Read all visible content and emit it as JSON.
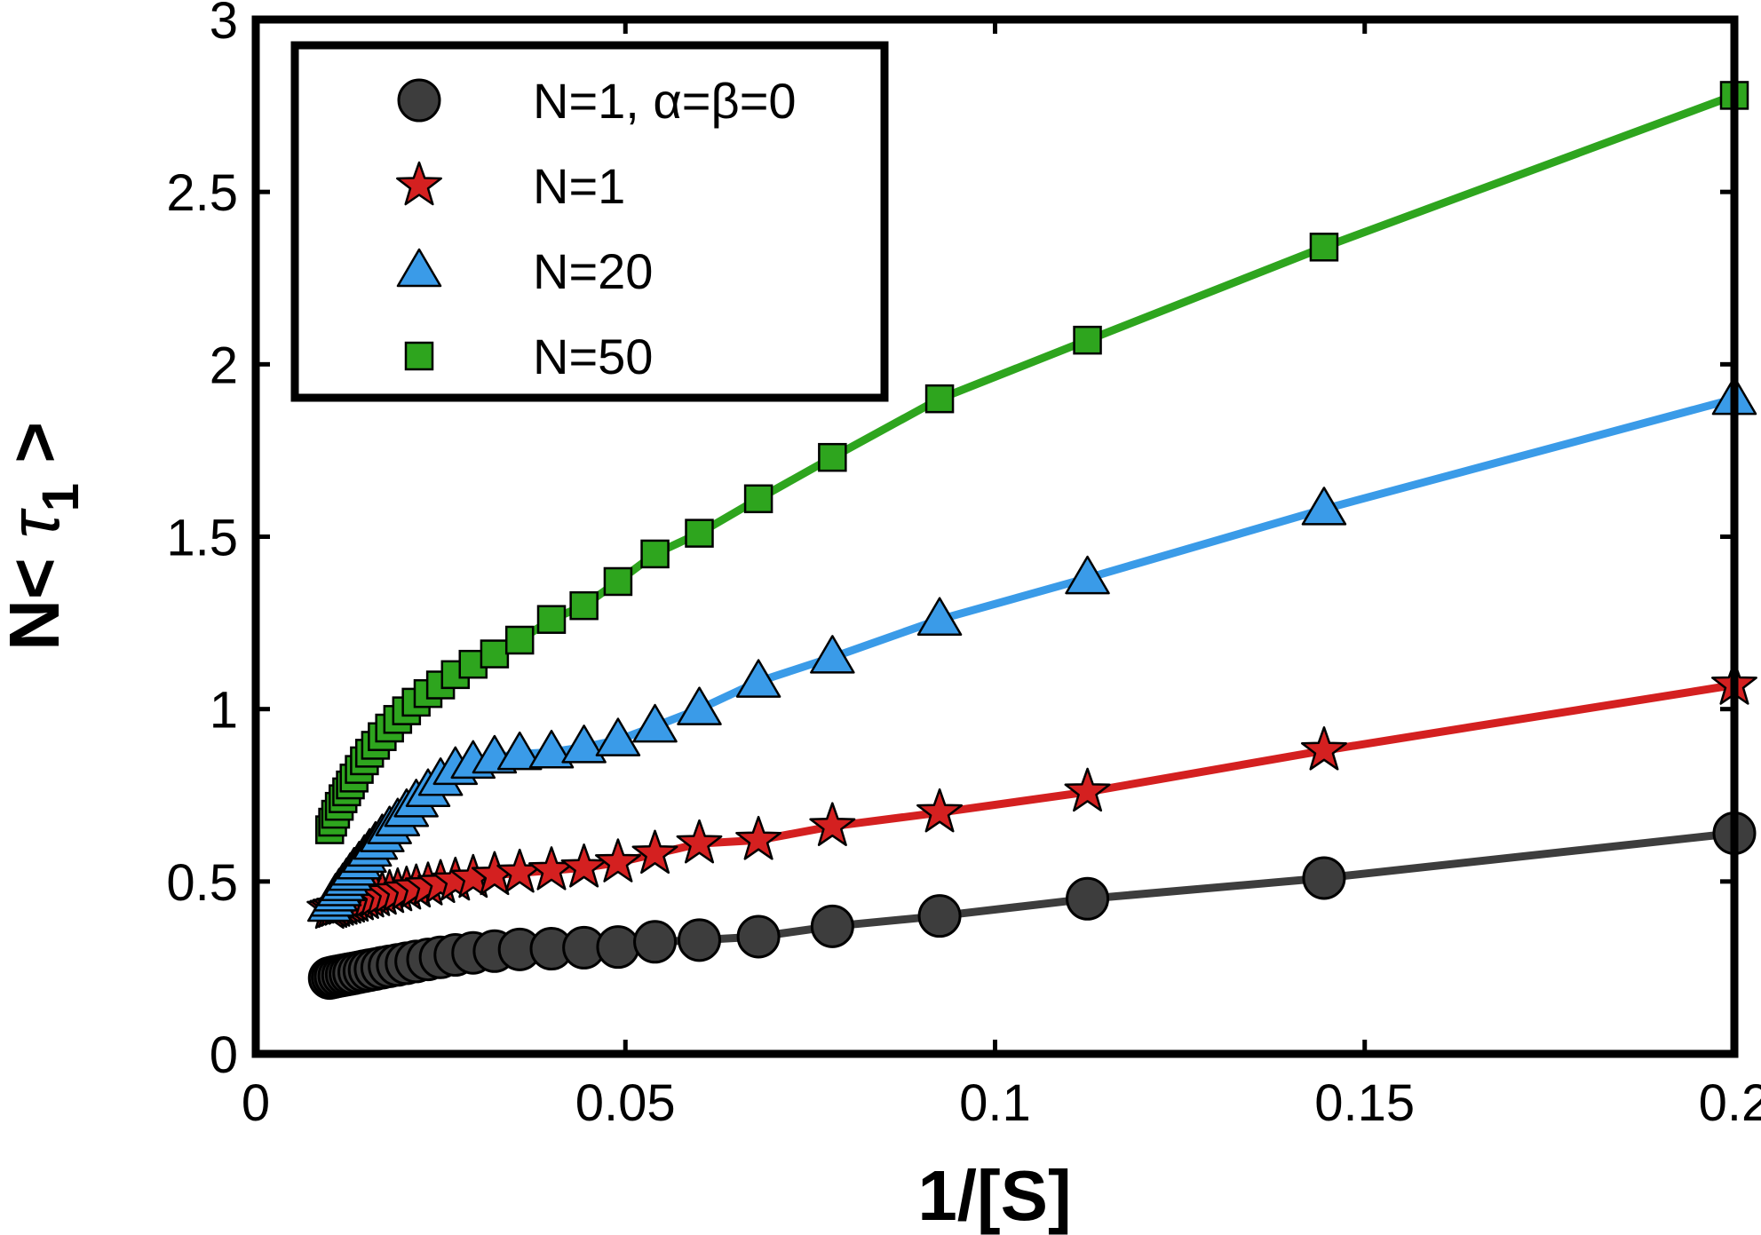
{
  "chart_data": {
    "type": "scatter",
    "title": "",
    "xlabel": "1/[S]",
    "ylabel": {
      "prefix": "N< ",
      "symbol": "τ",
      "subscript": "1",
      "suffix": " >"
    },
    "xlim": [
      0,
      0.2
    ],
    "ylim": [
      0,
      3
    ],
    "xticks": [
      0,
      0.05,
      0.1,
      0.15,
      0.2
    ],
    "xtick_labels": [
      "0",
      "0.05",
      "0.1",
      "0.15",
      "0.2"
    ],
    "yticks": [
      0,
      0.5,
      1,
      1.5,
      2,
      2.5,
      3
    ],
    "ytick_labels": [
      "0",
      "0.5",
      "1",
      "1.5",
      "2",
      "2.5",
      "3"
    ],
    "grid": false,
    "legend_position": "top-left",
    "x": [
      0.01,
      0.0104,
      0.0108,
      0.0113,
      0.0118,
      0.0123,
      0.0128,
      0.0133,
      0.014,
      0.0147,
      0.0154,
      0.0162,
      0.0171,
      0.0181,
      0.0192,
      0.0204,
      0.0217,
      0.0233,
      0.025,
      0.027,
      0.0294,
      0.0323,
      0.0357,
      0.04,
      0.0444,
      0.049,
      0.054,
      0.06,
      0.068,
      0.078,
      0.0925,
      0.1125,
      0.1445,
      0.2
    ],
    "series": [
      {
        "name": "N=1, α=β=0",
        "marker": "circle",
        "color": "#3d3d3d",
        "values": [
          0.22,
          0.222,
          0.224,
          0.226,
          0.228,
          0.23,
          0.232,
          0.234,
          0.237,
          0.24,
          0.243,
          0.246,
          0.25,
          0.254,
          0.258,
          0.263,
          0.268,
          0.274,
          0.28,
          0.287,
          0.293,
          0.298,
          0.303,
          0.305,
          0.308,
          0.31,
          0.325,
          0.33,
          0.34,
          0.37,
          0.4,
          0.45,
          0.51,
          0.64
        ]
      },
      {
        "name": "N=1",
        "marker": "star",
        "color": "#d42020",
        "values": [
          0.42,
          0.423,
          0.426,
          0.429,
          0.432,
          0.435,
          0.438,
          0.441,
          0.445,
          0.449,
          0.453,
          0.457,
          0.461,
          0.466,
          0.471,
          0.476,
          0.482,
          0.488,
          0.495,
          0.502,
          0.51,
          0.518,
          0.525,
          0.532,
          0.54,
          0.555,
          0.58,
          0.61,
          0.62,
          0.66,
          0.7,
          0.76,
          0.88,
          1.07
        ]
      },
      {
        "name": "N=20",
        "marker": "triangle",
        "color": "#3a9be8",
        "values": [
          0.43,
          0.445,
          0.46,
          0.475,
          0.49,
          0.505,
          0.52,
          0.535,
          0.553,
          0.572,
          0.59,
          0.61,
          0.632,
          0.655,
          0.678,
          0.705,
          0.733,
          0.763,
          0.795,
          0.827,
          0.845,
          0.86,
          0.87,
          0.875,
          0.89,
          0.91,
          0.95,
          1.0,
          1.08,
          1.15,
          1.26,
          1.38,
          1.58,
          1.9
        ]
      },
      {
        "name": "N=50",
        "marker": "square",
        "color": "#2ea51e",
        "values": [
          0.65,
          0.672,
          0.695,
          0.718,
          0.74,
          0.76,
          0.78,
          0.8,
          0.825,
          0.85,
          0.872,
          0.895,
          0.92,
          0.945,
          0.97,
          0.995,
          1.02,
          1.045,
          1.07,
          1.1,
          1.13,
          1.16,
          1.2,
          1.26,
          1.3,
          1.37,
          1.45,
          1.51,
          1.61,
          1.73,
          1.9,
          2.07,
          2.34,
          2.78
        ]
      }
    ]
  }
}
